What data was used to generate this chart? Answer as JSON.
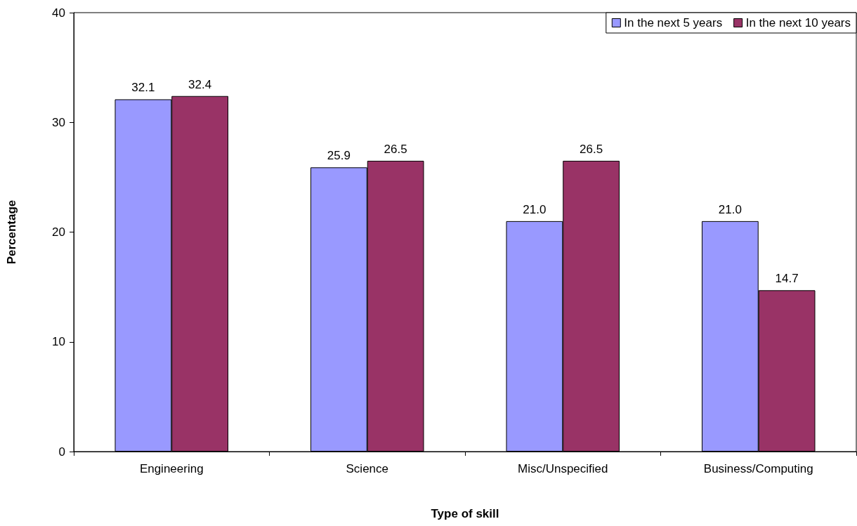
{
  "chart_data": {
    "type": "bar",
    "xlabel": "Type of skill",
    "ylabel": "Percentage",
    "categories": [
      "Engineering",
      "Science",
      "Misc/Unspecified",
      "Business/Computing"
    ],
    "series": [
      {
        "name": "In the next 5 years",
        "color": "#9999ff",
        "values": [
          32.1,
          25.9,
          21.0,
          21.0
        ],
        "value_labels": [
          "32.1",
          "25.9",
          "21.0",
          "21.0"
        ]
      },
      {
        "name": "In the next 10 years",
        "color": "#993366",
        "values": [
          32.4,
          26.5,
          26.5,
          14.7
        ],
        "value_labels": [
          "32.4",
          "26.5",
          "26.5",
          "14.7"
        ]
      }
    ],
    "ylim": [
      0,
      40
    ],
    "yticks": [
      0,
      10,
      20,
      30,
      40
    ],
    "grid": false,
    "legend": "top right"
  }
}
